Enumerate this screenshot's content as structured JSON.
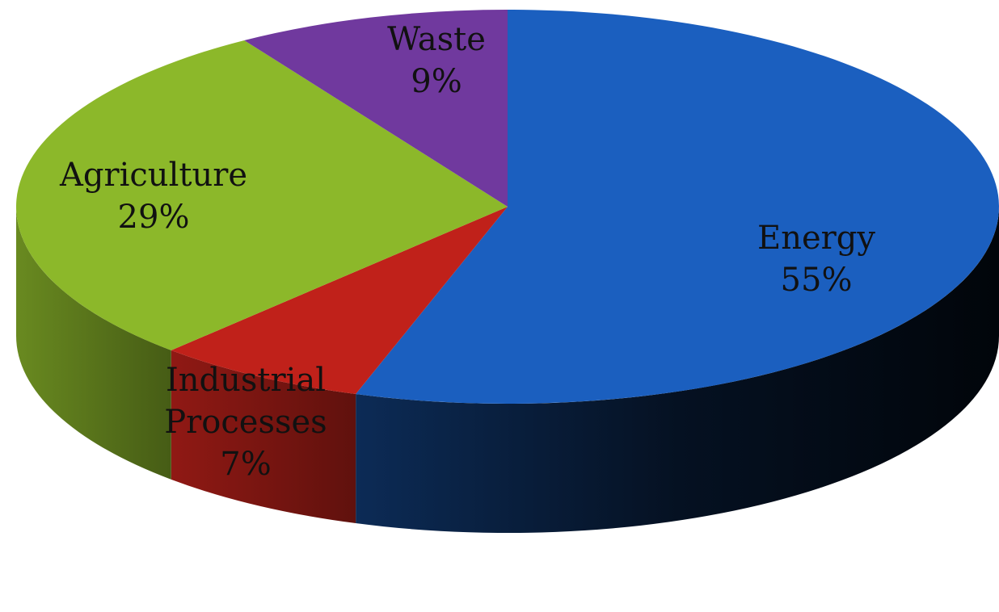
{
  "chart_data": {
    "type": "pie",
    "style": "3d",
    "title": "",
    "slices": [
      {
        "key": "energy",
        "label_lines": [
          "Energy"
        ],
        "value": 55,
        "pct_text": "55%",
        "color": "#1b5fbf"
      },
      {
        "key": "industrial",
        "label_lines": [
          "Industrial",
          "Processes"
        ],
        "value": 7,
        "pct_text": "7%",
        "color": "#c0211a"
      },
      {
        "key": "agriculture",
        "label_lines": [
          "Agriculture"
        ],
        "value": 29,
        "pct_text": "29%",
        "color": "#8cb82a"
      },
      {
        "key": "waste",
        "label_lines": [
          "Waste"
        ],
        "value": 9,
        "pct_text": "9%",
        "color": "#70399e"
      }
    ],
    "legend": "none"
  }
}
